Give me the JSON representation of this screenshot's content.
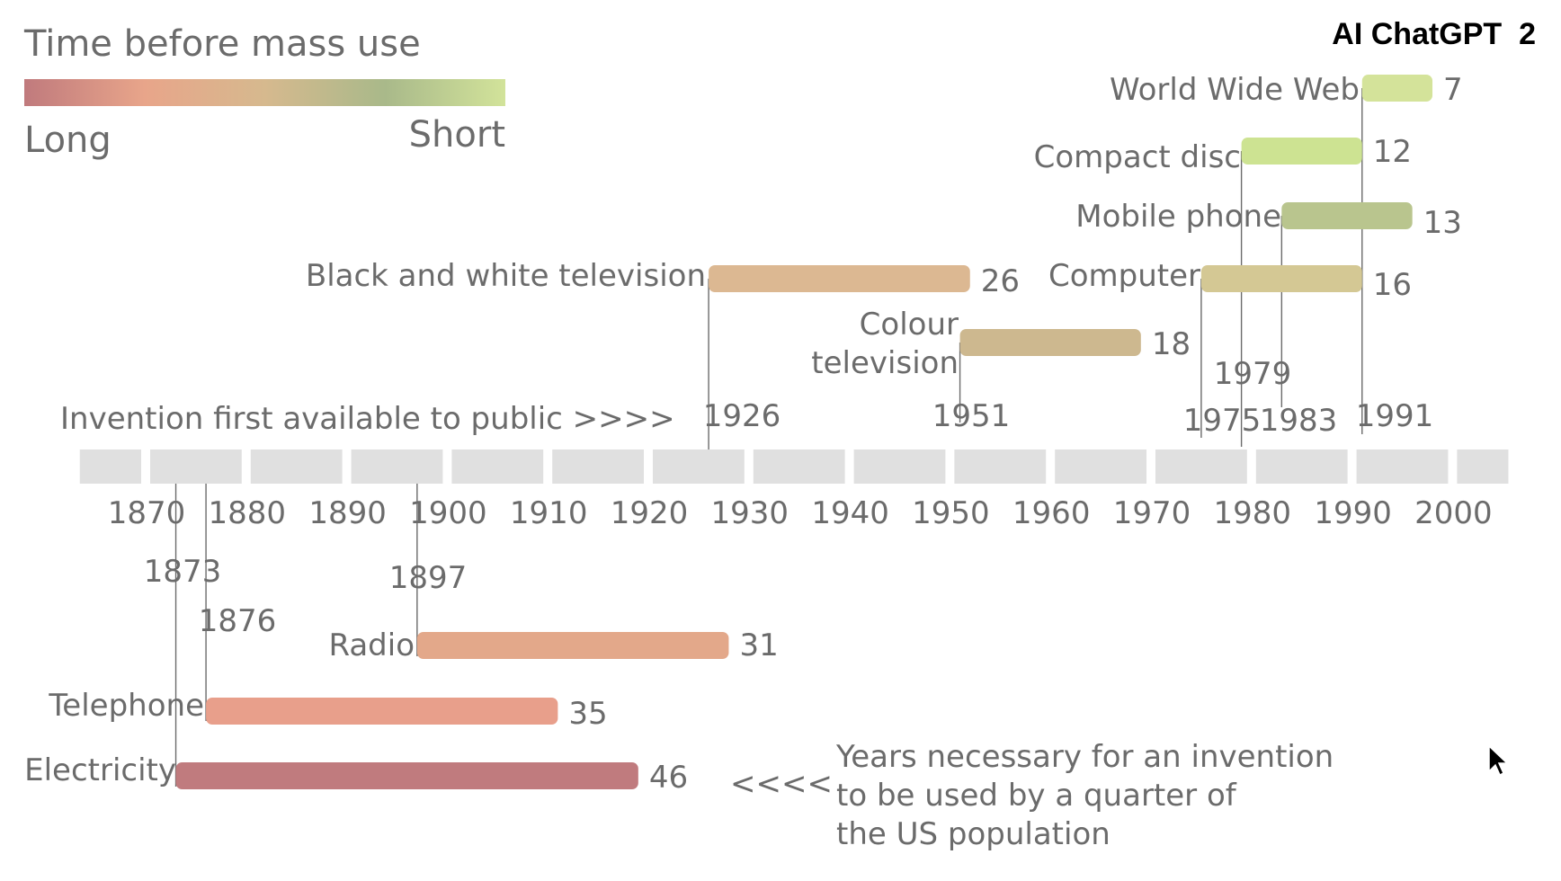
{
  "header": {
    "corner_label": "AI ChatGPT  2"
  },
  "legend": {
    "title": "Time before mass use",
    "long_label": "Long",
    "short_label": "Short",
    "gradient_colors": [
      "#c07a7d",
      "#e8a58a",
      "#d6b98e",
      "#a9b98a",
      "#d2e39a"
    ]
  },
  "annotations": {
    "invention_label": "Invention first available to public >>>>",
    "years_note_arrow": "<<<<",
    "years_note_lines": [
      "Years necessary for an invention",
      "to be used by a quarter of",
      "the US population"
    ]
  },
  "chart_data": {
    "type": "bar",
    "xlim": [
      1863,
      2006
    ],
    "x_ticks": [
      1870,
      1880,
      1890,
      1900,
      1910,
      1920,
      1930,
      1940,
      1950,
      1960,
      1970,
      1980,
      1990,
      2000
    ],
    "series": [
      {
        "name": "World Wide Web",
        "start": 1991,
        "years": 7,
        "color": "#d4e39a",
        "start_label": "1991"
      },
      {
        "name": "Compact disc",
        "start": 1979,
        "years": 12,
        "color": "#cde392",
        "start_label": "1979"
      },
      {
        "name": "Mobile phone",
        "start": 1983,
        "years": 13,
        "color": "#b9c58e",
        "start_label": "1983"
      },
      {
        "name": "Computer",
        "start": 1975,
        "years": 16,
        "color": "#d4c894",
        "start_label": "1975"
      },
      {
        "name": "Black and white television",
        "start": 1926,
        "years": 26,
        "color": "#dcb892",
        "start_label": "1926"
      },
      {
        "name": "Colour television",
        "start": 1951,
        "years": 18,
        "color": "#cdb88f",
        "start_label": "1951"
      },
      {
        "name": "Radio",
        "start": 1897,
        "years": 31,
        "color": "#e3a88a",
        "start_label": "1897"
      },
      {
        "name": "Telephone",
        "start": 1876,
        "years": 35,
        "color": "#e89f8b",
        "start_label": "1876"
      },
      {
        "name": "Electricity",
        "start": 1873,
        "years": 46,
        "color": "#c07b7e",
        "start_label": "1873"
      }
    ]
  }
}
